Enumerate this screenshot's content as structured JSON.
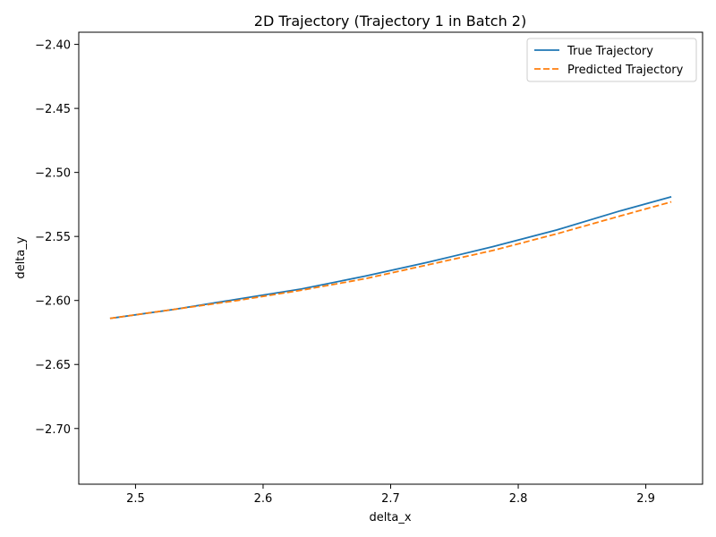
{
  "chart_data": {
    "type": "line",
    "title": "2D Trajectory (Trajectory 1 in Batch 2)",
    "xlabel": "delta_x",
    "ylabel": "delta_y",
    "xlim": [
      2.4555,
      2.9445
    ],
    "ylim": [
      -2.7435,
      -2.3905
    ],
    "xticks": [
      2.5,
      2.6,
      2.7,
      2.8,
      2.9
    ],
    "xtick_labels": [
      "2.5",
      "2.6",
      "2.7",
      "2.8",
      "2.9"
    ],
    "yticks": [
      -2.4,
      -2.45,
      -2.5,
      -2.55,
      -2.6,
      -2.65,
      -2.7
    ],
    "ytick_labels": [
      "−2.40",
      "−2.45",
      "−2.50",
      "−2.55",
      "−2.60",
      "−2.65",
      "−2.70"
    ],
    "grid": false,
    "legend_position": "top-right",
    "series": [
      {
        "name": "True Trajectory",
        "color": "#1f77b4",
        "style": "solid",
        "x": [
          2.48,
          2.53,
          2.58,
          2.63,
          2.68,
          2.73,
          2.78,
          2.83,
          2.88,
          2.92
        ],
        "y": [
          -2.614,
          -2.607,
          -2.599,
          -2.591,
          -2.581,
          -2.57,
          -2.558,
          -2.545,
          -2.53,
          -2.519
        ]
      },
      {
        "name": "Predicted Trajectory",
        "color": "#ff7f0e",
        "style": "dashed",
        "x": [
          2.48,
          2.53,
          2.58,
          2.63,
          2.68,
          2.73,
          2.78,
          2.83,
          2.88,
          2.92
        ],
        "y": [
          -2.614,
          -2.607,
          -2.6,
          -2.592,
          -2.583,
          -2.572,
          -2.561,
          -2.548,
          -2.534,
          -2.523
        ]
      }
    ]
  }
}
